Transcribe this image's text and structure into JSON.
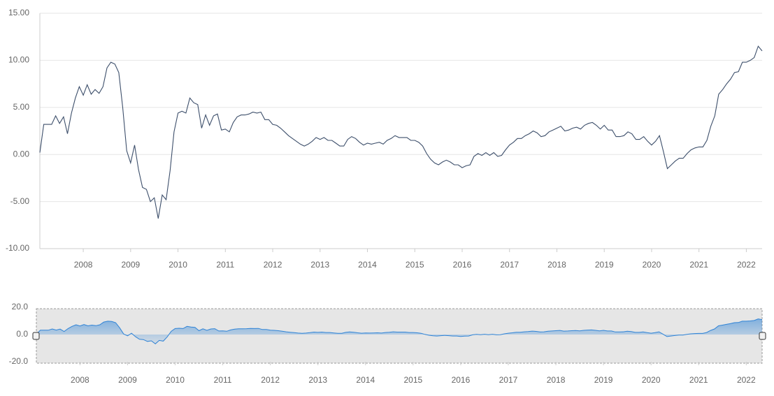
{
  "chart_data": {
    "type": "line",
    "x": [
      "2007-02",
      "2007-03",
      "2007-04",
      "2007-05",
      "2007-06",
      "2007-07",
      "2007-08",
      "2007-09",
      "2007-10",
      "2007-11",
      "2007-12",
      "2008-01",
      "2008-02",
      "2008-03",
      "2008-04",
      "2008-05",
      "2008-06",
      "2008-07",
      "2008-08",
      "2008-09",
      "2008-10",
      "2008-11",
      "2008-12",
      "2009-01",
      "2009-02",
      "2009-03",
      "2009-04",
      "2009-05",
      "2009-06",
      "2009-07",
      "2009-08",
      "2009-09",
      "2009-10",
      "2009-11",
      "2009-12",
      "2010-01",
      "2010-02",
      "2010-03",
      "2010-04",
      "2010-05",
      "2010-06",
      "2010-07",
      "2010-08",
      "2010-09",
      "2010-10",
      "2010-11",
      "2010-12",
      "2011-01",
      "2011-02",
      "2011-03",
      "2011-04",
      "2011-05",
      "2011-06",
      "2011-07",
      "2011-08",
      "2011-09",
      "2011-10",
      "2011-11",
      "2011-12",
      "2012-01",
      "2012-02",
      "2012-03",
      "2012-04",
      "2012-05",
      "2012-06",
      "2012-07",
      "2012-08",
      "2012-09",
      "2012-10",
      "2012-11",
      "2012-12",
      "2013-01",
      "2013-02",
      "2013-03",
      "2013-04",
      "2013-05",
      "2013-06",
      "2013-07",
      "2013-08",
      "2013-09",
      "2013-10",
      "2013-11",
      "2013-12",
      "2014-01",
      "2014-02",
      "2014-03",
      "2014-04",
      "2014-05",
      "2014-06",
      "2014-07",
      "2014-08",
      "2014-09",
      "2014-10",
      "2014-11",
      "2014-12",
      "2015-01",
      "2015-02",
      "2015-03",
      "2015-04",
      "2015-05",
      "2015-06",
      "2015-07",
      "2015-08",
      "2015-09",
      "2015-10",
      "2015-11",
      "2015-12",
      "2016-01",
      "2016-02",
      "2016-03",
      "2016-04",
      "2016-05",
      "2016-06",
      "2016-07",
      "2016-08",
      "2016-09",
      "2016-10",
      "2016-11",
      "2016-12",
      "2017-01",
      "2017-02",
      "2017-03",
      "2017-04",
      "2017-05",
      "2017-06",
      "2017-07",
      "2017-08",
      "2017-09",
      "2017-10",
      "2017-11",
      "2017-12",
      "2018-01",
      "2018-02",
      "2018-03",
      "2018-04",
      "2018-05",
      "2018-06",
      "2018-07",
      "2018-08",
      "2018-09",
      "2018-10",
      "2018-11",
      "2018-12",
      "2019-01",
      "2019-02",
      "2019-03",
      "2019-04",
      "2019-05",
      "2019-06",
      "2019-07",
      "2019-08",
      "2019-09",
      "2019-10",
      "2019-11",
      "2019-12",
      "2020-01",
      "2020-02",
      "2020-03",
      "2020-04",
      "2020-05",
      "2020-06",
      "2020-07",
      "2020-08",
      "2020-09",
      "2020-10",
      "2020-11",
      "2020-12",
      "2021-01",
      "2021-02",
      "2021-03",
      "2021-04",
      "2021-05",
      "2021-06",
      "2021-07",
      "2021-08",
      "2021-09",
      "2021-10",
      "2021-11",
      "2021-12",
      "2022-01",
      "2022-02",
      "2022-03",
      "2022-04",
      "2022-05"
    ],
    "values": [
      0.2,
      3.2,
      3.2,
      3.2,
      4.1,
      3.3,
      4.0,
      2.2,
      4.4,
      6.0,
      7.2,
      6.3,
      7.4,
      6.4,
      6.9,
      6.5,
      7.2,
      9.2,
      9.8,
      9.6,
      8.7,
      5.0,
      0.4,
      -0.9,
      1.0,
      -1.6,
      -3.5,
      -3.7,
      -5.0,
      -4.6,
      -6.8,
      -4.3,
      -4.8,
      -1.7,
      2.4,
      4.4,
      4.6,
      4.4,
      6.0,
      5.5,
      5.3,
      2.8,
      4.2,
      3.1,
      4.1,
      4.3,
      2.6,
      2.7,
      2.4,
      3.4,
      4.0,
      4.2,
      4.2,
      4.3,
      4.5,
      4.4,
      4.5,
      3.7,
      3.7,
      3.2,
      3.1,
      2.8,
      2.4,
      2.0,
      1.7,
      1.4,
      1.1,
      0.9,
      1.1,
      1.4,
      1.8,
      1.6,
      1.8,
      1.5,
      1.5,
      1.2,
      0.9,
      0.9,
      1.6,
      1.9,
      1.7,
      1.3,
      1.0,
      1.2,
      1.1,
      1.2,
      1.3,
      1.1,
      1.5,
      1.7,
      2.0,
      1.8,
      1.8,
      1.8,
      1.5,
      1.5,
      1.3,
      0.9,
      0.1,
      -0.5,
      -0.9,
      -1.1,
      -0.8,
      -0.6,
      -0.8,
      -1.1,
      -1.1,
      -1.4,
      -1.2,
      -1.1,
      -0.2,
      0.1,
      -0.1,
      0.2,
      -0.1,
      0.2,
      -0.2,
      -0.1,
      0.5,
      1.0,
      1.3,
      1.7,
      1.7,
      2.0,
      2.2,
      2.5,
      2.3,
      1.9,
      2.0,
      2.4,
      2.6,
      2.8,
      3.0,
      2.5,
      2.6,
      2.8,
      2.9,
      2.7,
      3.1,
      3.3,
      3.4,
      3.1,
      2.7,
      3.1,
      2.6,
      2.6,
      1.9,
      1.9,
      2.0,
      2.4,
      2.2,
      1.6,
      1.6,
      1.9,
      1.4,
      1.0,
      1.4,
      2.0,
      0.3,
      -1.5,
      -1.1,
      -0.7,
      -0.4,
      -0.4,
      0.1,
      0.5,
      0.7,
      0.8,
      0.8,
      1.5,
      3.0,
      4.1,
      6.4,
      6.9,
      7.5,
      8.0,
      8.7,
      8.8,
      9.8,
      9.8,
      10.0,
      10.3,
      11.5,
      11.0
    ],
    "color": "#3d4f6b",
    "ylim": [
      -10,
      15
    ],
    "yticks": [
      {
        "value": -10,
        "label": "-10.00"
      },
      {
        "value": -5,
        "label": "-5.00"
      },
      {
        "value": 0,
        "label": "0.00"
      },
      {
        "value": 5,
        "label": "5.00"
      },
      {
        "value": 10,
        "label": "10.00"
      },
      {
        "value": 15,
        "label": "15.00"
      }
    ],
    "xticks": [
      2008,
      2009,
      2010,
      2011,
      2012,
      2013,
      2014,
      2015,
      2016,
      2017,
      2018,
      2019,
      2020,
      2021,
      2022
    ],
    "grid": true,
    "navigator": {
      "color": "#2f83d6",
      "ylim": [
        -20,
        20
      ],
      "yticks": [
        {
          "value": -20,
          "label": "-20.0"
        },
        {
          "value": 0,
          "label": "0.0"
        },
        {
          "value": 20,
          "label": "20.0"
        }
      ]
    }
  }
}
